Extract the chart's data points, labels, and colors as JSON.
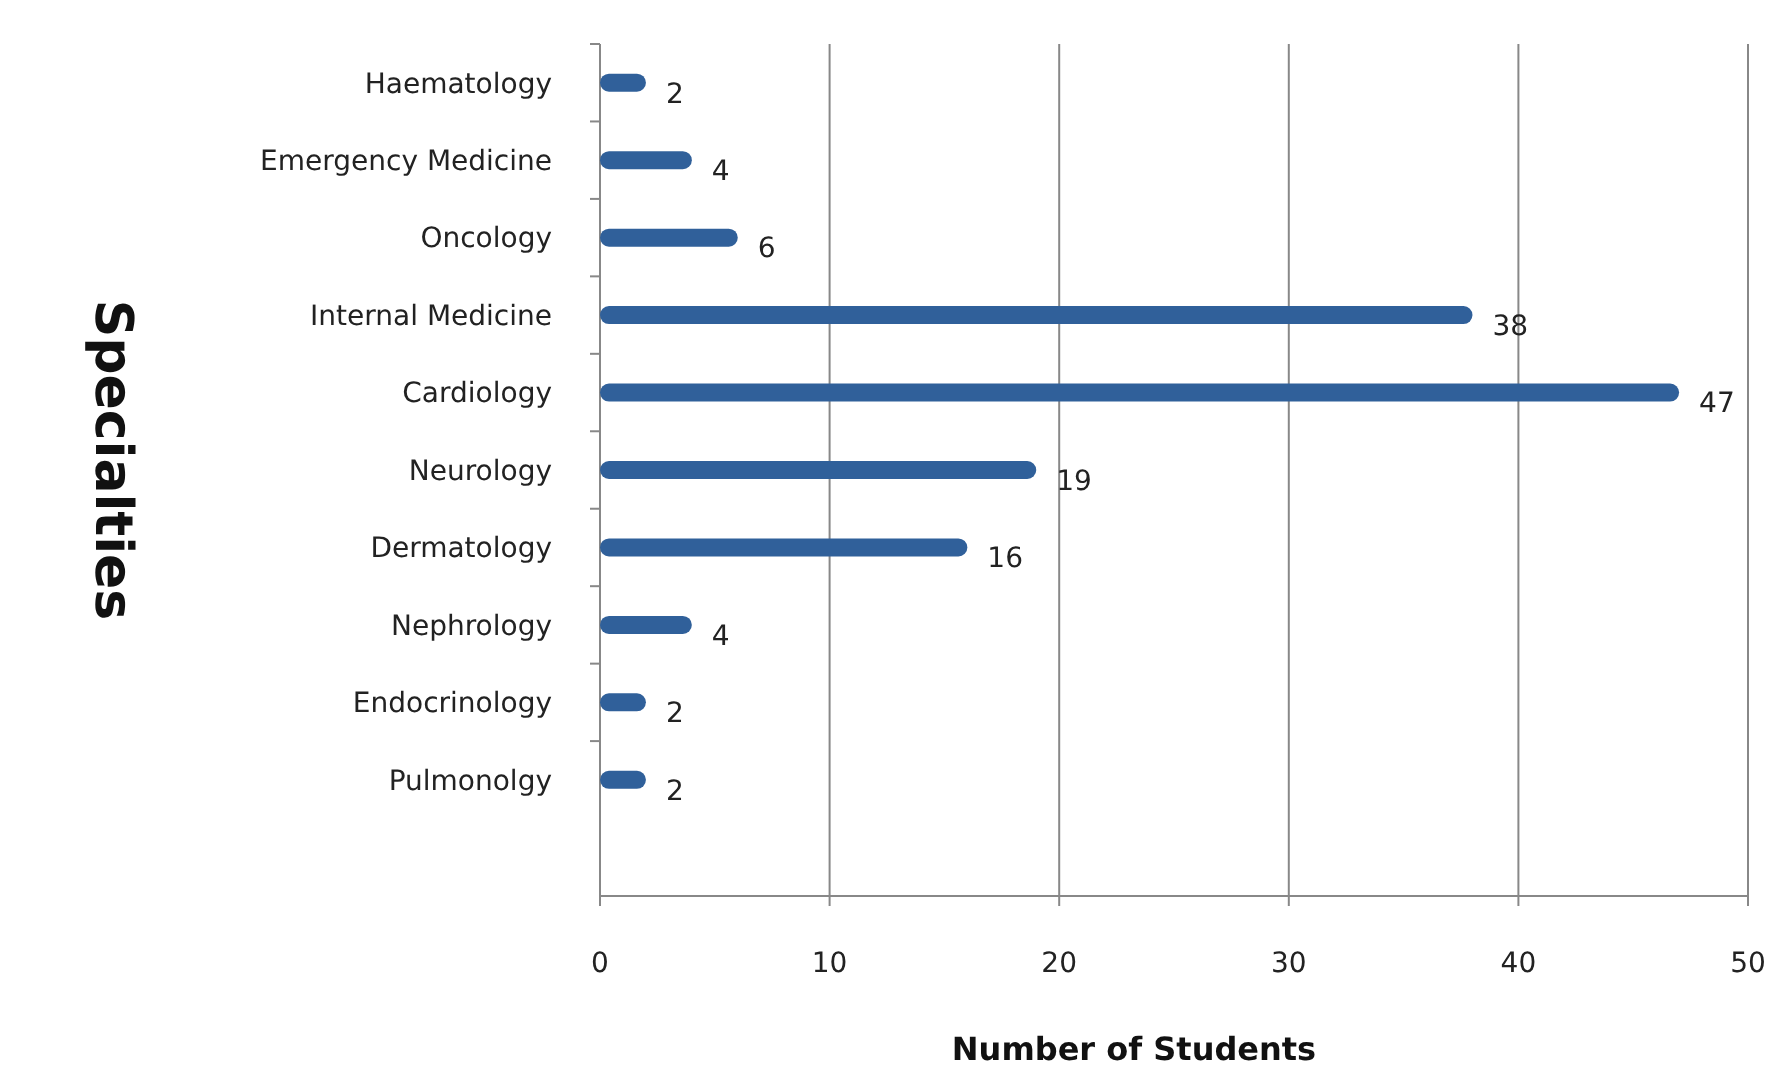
{
  "chart_data": {
    "type": "bar",
    "orientation": "horizontal",
    "ylabel": "Specialties",
    "xlabel": "Number of Students",
    "categories": [
      "Haematology",
      "Emergency Medicine",
      "Oncology",
      "Internal Medicine",
      "Cardiology",
      "Neurology",
      "Dermatology",
      "Nephrology",
      "Endocrinology",
      "Pulmonolgy"
    ],
    "values": [
      2,
      4,
      6,
      38,
      47,
      19,
      16,
      4,
      2,
      2
    ],
    "color": "#30609a",
    "xlim": [
      0,
      50
    ],
    "xticks": [
      0,
      10,
      20,
      30,
      40,
      50
    ],
    "grid": "x",
    "data_labels": true
  }
}
